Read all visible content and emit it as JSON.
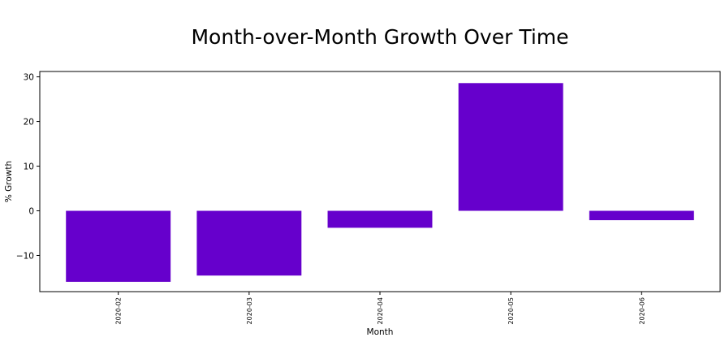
{
  "chart_data": {
    "type": "bar",
    "title": "Month-over-Month Growth Over Time",
    "xlabel": "Month",
    "ylabel": "% Growth",
    "categories": [
      "2020-02",
      "2020-03",
      "2020-04",
      "2020-05",
      "2020-06"
    ],
    "values": [
      -15.9,
      -14.5,
      -3.8,
      28.6,
      -2.1
    ],
    "ylim": [
      -18.1,
      31.2
    ],
    "yticks": [
      -10,
      0,
      10,
      20,
      30
    ],
    "ytick_labels": [
      "−10",
      "0",
      "10",
      "20",
      "30"
    ],
    "bar_color": "#6600cc",
    "grid": false,
    "legend": "none"
  }
}
